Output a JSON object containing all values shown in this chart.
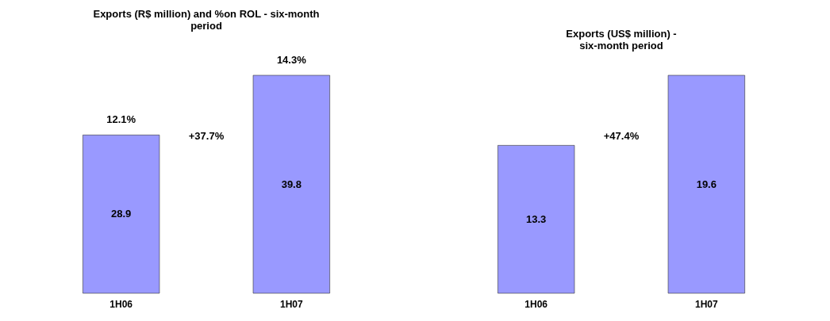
{
  "chart_data": [
    {
      "type": "bar",
      "title": "Exports (R$ million) and %on ROL - six-month period",
      "categories": [
        "1H06",
        "1H07"
      ],
      "values": [
        28.9,
        39.8
      ],
      "color": "#9999ff",
      "data_labels": true,
      "annotations": [
        "12.1%",
        "14.3%",
        "+37.7%"
      ]
    },
    {
      "type": "bar",
      "title": "Exports (US$ million) - six-month period",
      "categories": [
        "1H06",
        "1H07"
      ],
      "values": [
        13.3,
        19.6
      ],
      "color": "#9999ff",
      "data_labels": true,
      "annotations": [
        "+47.4%"
      ]
    }
  ]
}
